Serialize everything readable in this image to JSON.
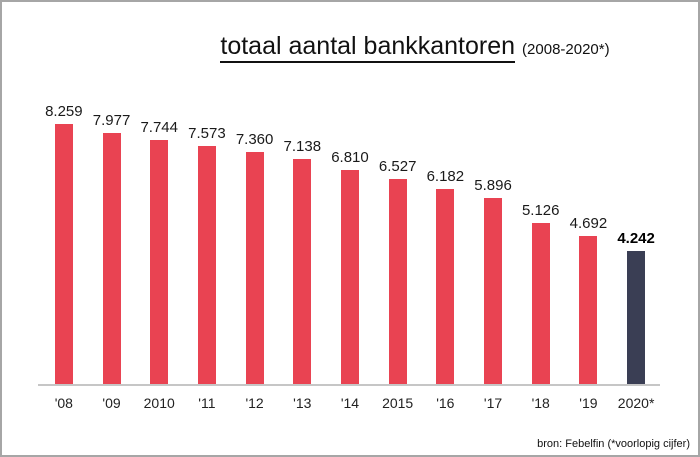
{
  "title": {
    "main": "totaal aantal bankkantoren",
    "suffix": "(2008-2020*)"
  },
  "footer": {
    "source": "bron: Febelfin (*voorlopig cijfer)"
  },
  "colors": {
    "bar": "#e94352",
    "highlight_bar": "#3a3e54",
    "axis_line": "#c6c6c6",
    "label_text": "#1a1a1a"
  },
  "chart_data": {
    "type": "bar",
    "title": "totaal aantal bankkantoren (2008-2020*)",
    "categories": [
      "'08",
      "'09",
      "2010",
      "'11",
      "'12",
      "'13",
      "'14",
      "2015",
      "'16",
      "'17",
      "'18",
      "'19",
      "2020*"
    ],
    "values": [
      8259,
      7977,
      7744,
      7573,
      7360,
      7138,
      6810,
      6527,
      6182,
      5896,
      5126,
      4692,
      4242
    ],
    "value_labels": [
      "8.259",
      "7.977",
      "7.744",
      "7.573",
      "7.360",
      "7.138",
      "6.810",
      "6.527",
      "6.182",
      "5.896",
      "5.126",
      "4.692",
      "4.242"
    ],
    "highlight_index": 12,
    "xlabel": "",
    "ylabel": "",
    "ylim": [
      0,
      8259
    ],
    "grid": false,
    "legend_position": "none"
  }
}
